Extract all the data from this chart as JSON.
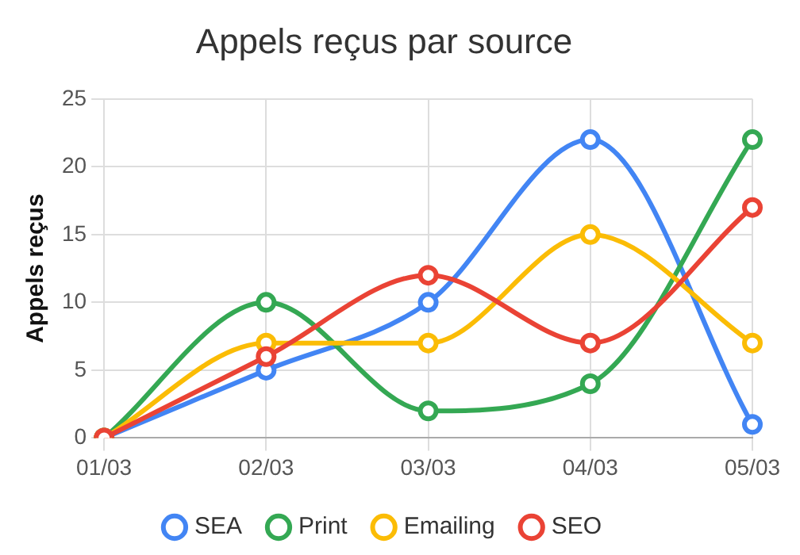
{
  "chart_data": {
    "type": "line",
    "title": "Appels reçus par source",
    "ylabel": "Appels reçus",
    "categories": [
      "01/03",
      "02/03",
      "03/03",
      "04/03",
      "05/03"
    ],
    "series": [
      {
        "name": "SEA",
        "color": "#4285f4",
        "values": [
          0,
          5,
          10,
          22,
          1
        ]
      },
      {
        "name": "Print",
        "color": "#34a853",
        "values": [
          0,
          10,
          2,
          4,
          22
        ]
      },
      {
        "name": "Emailing",
        "color": "#fbbc05",
        "values": [
          0,
          7,
          7,
          15,
          7
        ]
      },
      {
        "name": "SEO",
        "color": "#ea4335",
        "values": [
          0,
          6,
          12,
          7,
          17
        ]
      }
    ],
    "ylim": [
      0,
      25
    ],
    "yticks": [
      0,
      5,
      10,
      15,
      20,
      25
    ],
    "grid": true,
    "legend": "bottom",
    "marker": "circle",
    "line_style": "solid"
  }
}
